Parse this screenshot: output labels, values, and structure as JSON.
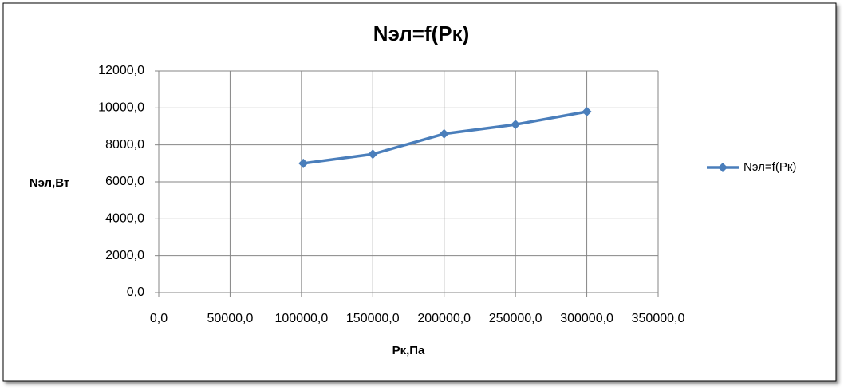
{
  "chart_data": {
    "type": "scatter-line",
    "title": "Nэл=f(Pк)",
    "x_label": "Pк,Па",
    "y_label": "Nэл,Вт",
    "x": [
      101325,
      150000,
      200000,
      250000,
      300000
    ],
    "series": [
      {
        "name": "Nэл=f(Pк)",
        "color": "#4a7ebb",
        "values": [
          7000,
          7500,
          8600,
          9100,
          9800
        ]
      }
    ],
    "xlim": [
      0,
      350000
    ],
    "xticks": [
      {
        "value": 0,
        "label": "0,0"
      },
      {
        "value": 50000,
        "label": "50000,0"
      },
      {
        "value": 100000,
        "label": "100000,0"
      },
      {
        "value": 150000,
        "label": "150000,0"
      },
      {
        "value": 200000,
        "label": "200000,0"
      },
      {
        "value": 250000,
        "label": "250000,0"
      },
      {
        "value": 300000,
        "label": "300000,0"
      },
      {
        "value": 350000,
        "label": "350000,0"
      }
    ],
    "ylim": [
      0,
      12000
    ],
    "yticks": [
      {
        "value": 0,
        "label": "0,0"
      },
      {
        "value": 2000,
        "label": "2000,0"
      },
      {
        "value": 4000,
        "label": "4000,0"
      },
      {
        "value": 6000,
        "label": "6000,0"
      },
      {
        "value": 8000,
        "label": "8000,0"
      },
      {
        "value": 10000,
        "label": "10000,0"
      },
      {
        "value": 12000,
        "label": "12000,0"
      }
    ],
    "grid": true,
    "legend": "right"
  }
}
